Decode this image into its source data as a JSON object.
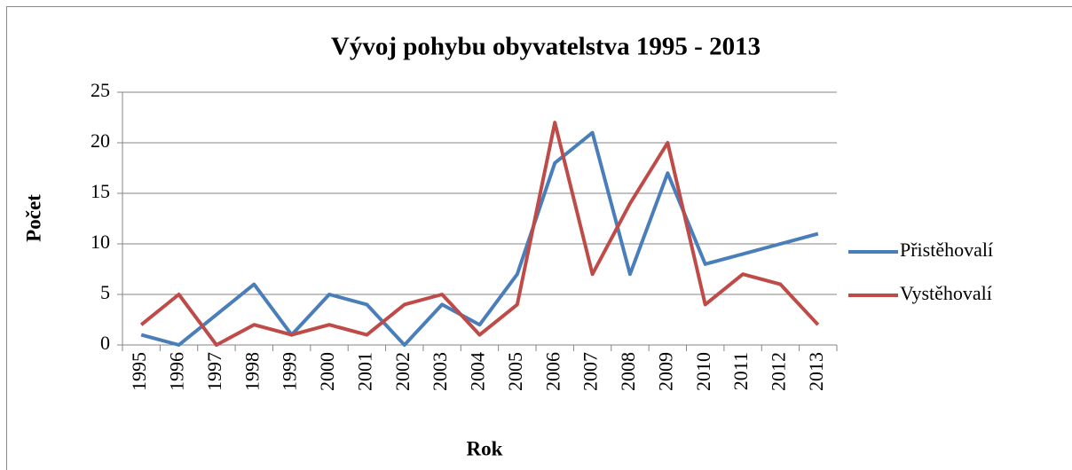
{
  "chart_data": {
    "type": "line",
    "title": "Vývoj pohybu obyvatelstva 1995 - 2013",
    "xlabel": "Rok",
    "ylabel": "Počet",
    "categories": [
      "1995",
      "1996",
      "1997",
      "1998",
      "1999",
      "2000",
      "2001",
      "2002",
      "2003",
      "2004",
      "2005",
      "2006",
      "2007",
      "2008",
      "2009",
      "2010",
      "2011",
      "2012",
      "2013"
    ],
    "series": [
      {
        "name": "Přistěhovalí",
        "color": "#4a7ebb",
        "values": [
          1,
          0,
          3,
          6,
          1,
          5,
          4,
          0,
          4,
          2,
          7,
          18,
          21,
          7,
          17,
          8,
          9,
          10,
          11
        ]
      },
      {
        "name": "Vystěhovalí",
        "color": "#be4b48",
        "values": [
          2,
          5,
          0,
          2,
          1,
          2,
          1,
          4,
          5,
          1,
          4,
          22,
          7,
          14,
          20,
          4,
          7,
          6,
          2
        ]
      }
    ],
    "ylim": [
      0,
      25
    ],
    "yticks": [
      0,
      5,
      10,
      15,
      20,
      25
    ],
    "grid": true,
    "legend": "right"
  }
}
